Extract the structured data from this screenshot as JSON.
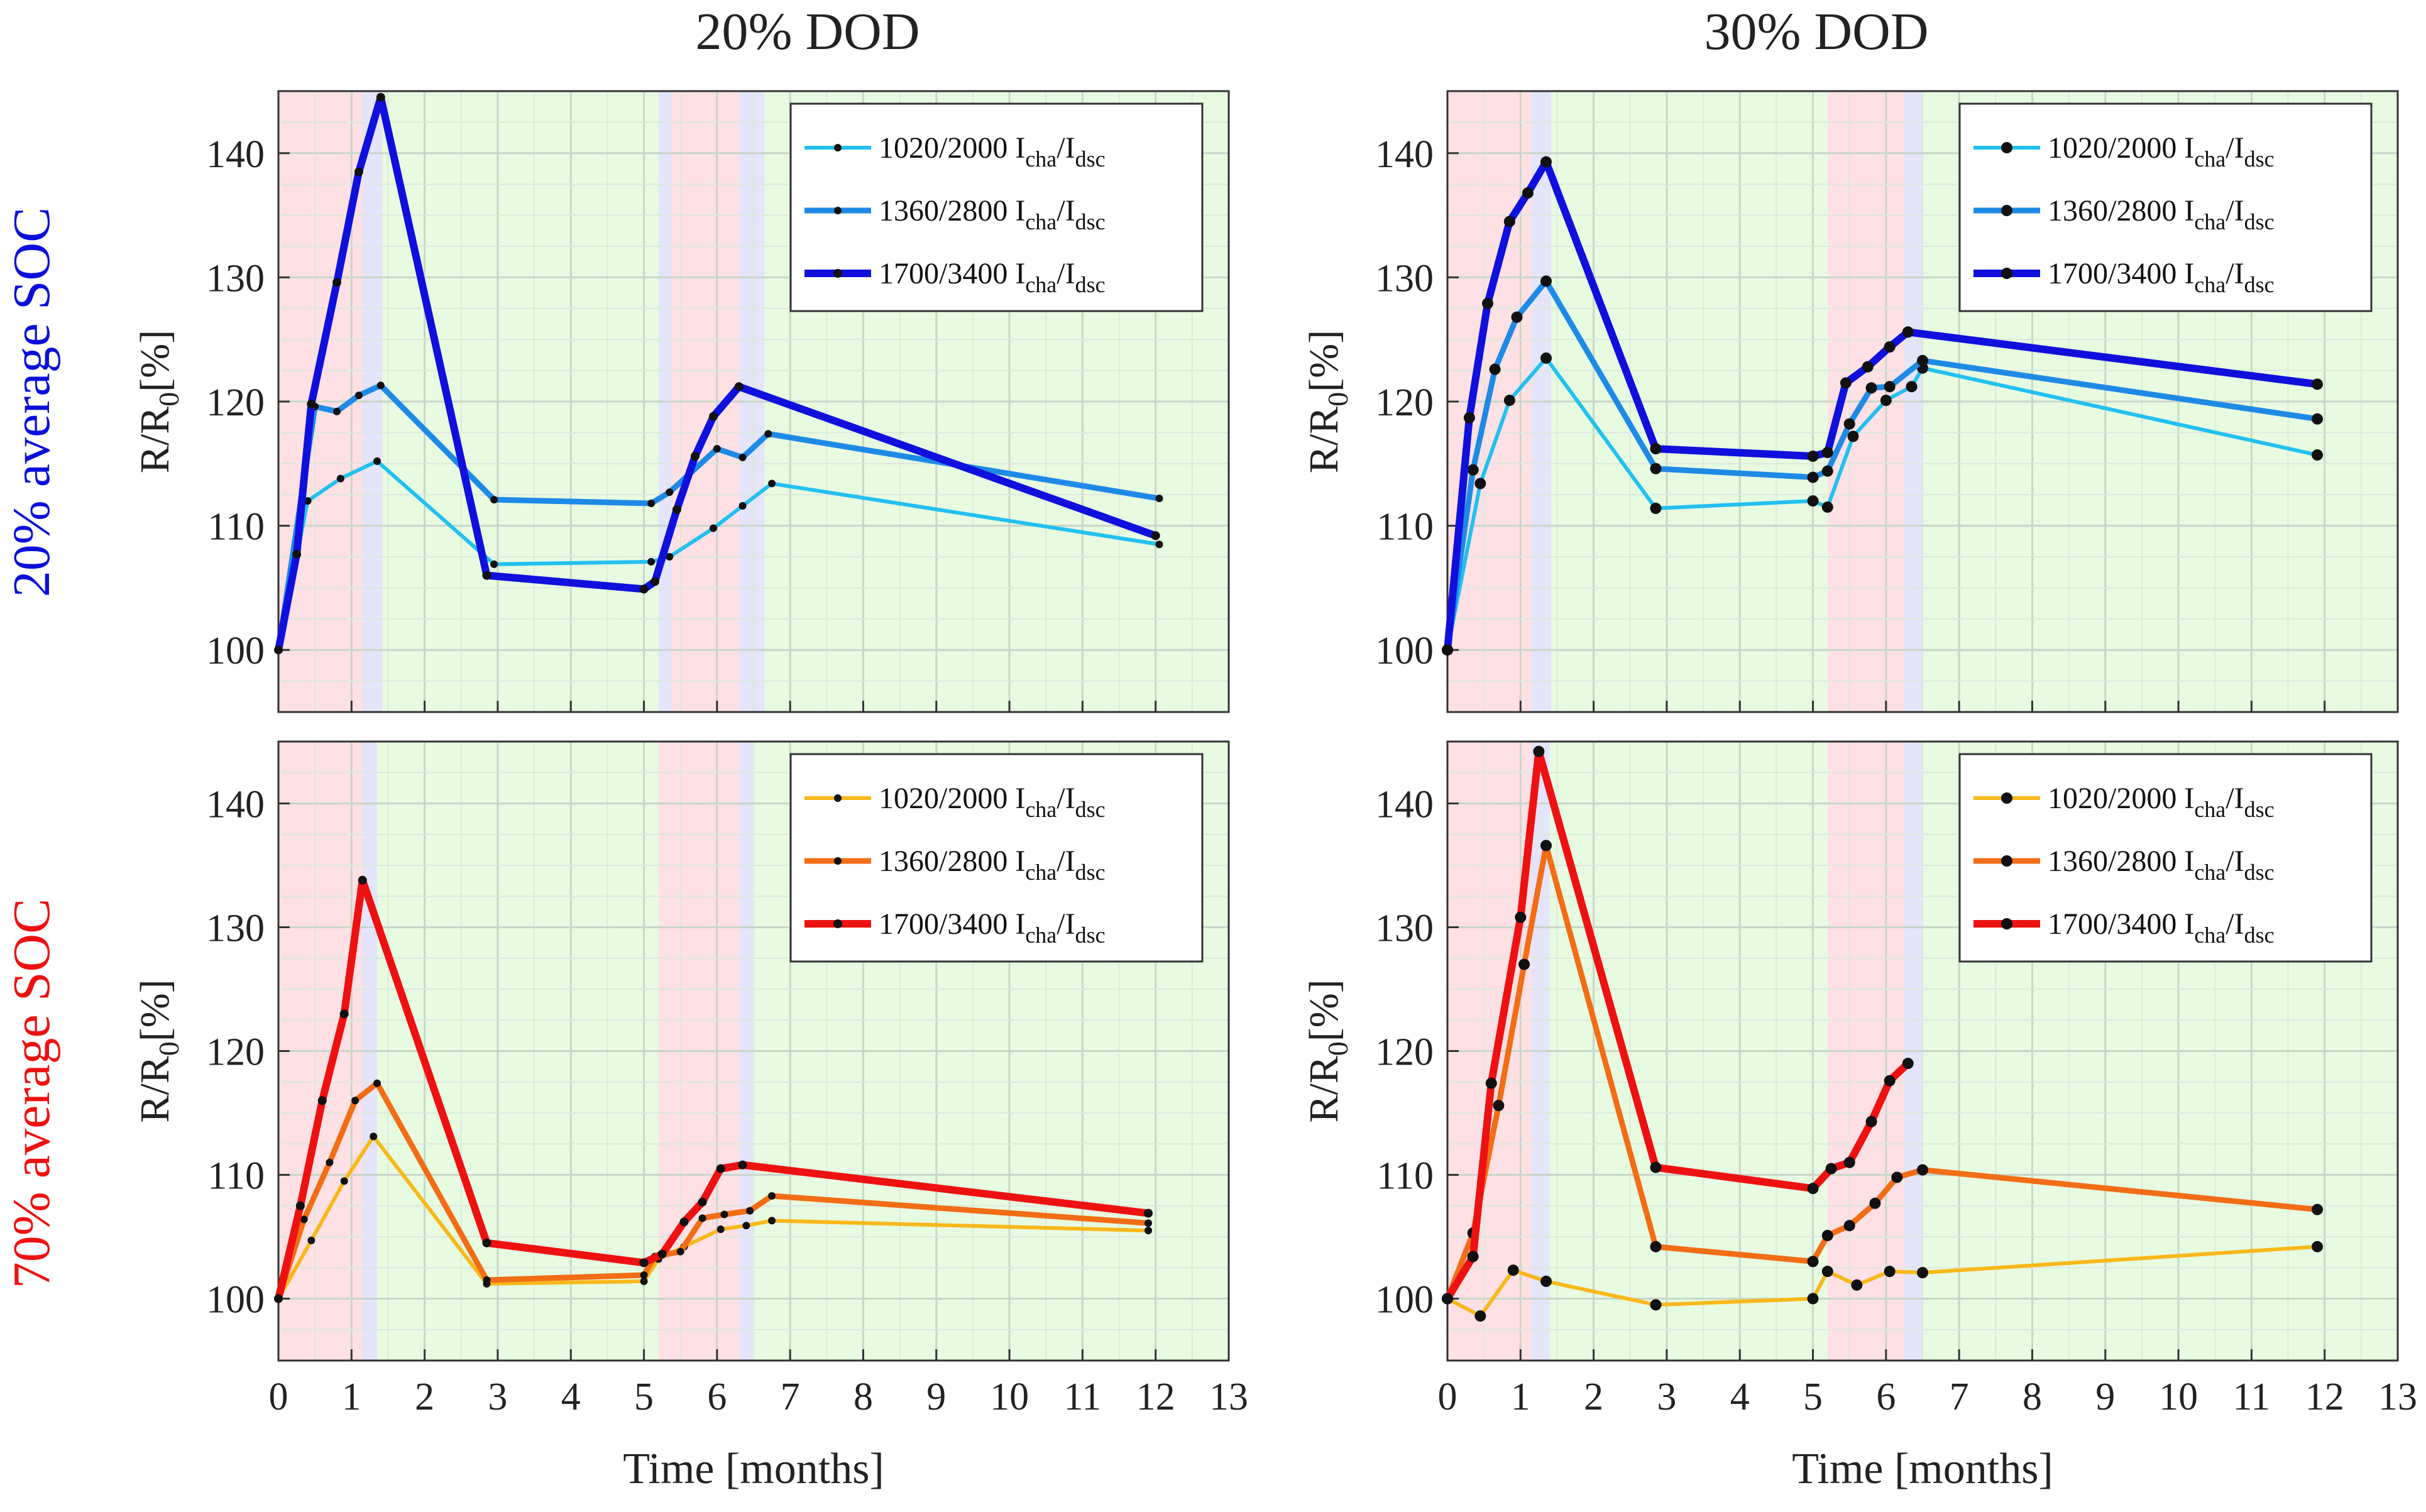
{
  "figure": {
    "col_titles": [
      "20% DOD",
      "30% DOD"
    ],
    "row_labels": [
      "20% average SOC",
      "70% average SOC"
    ],
    "row_label_colors": [
      "#0a10d8",
      "#ee1111"
    ],
    "xlabel": "Time [months]",
    "ylabel_main": "R/R",
    "ylabel_sub": "0",
    "ylabel_tail": "[%]",
    "xticks": [
      "0",
      "1",
      "2",
      "3",
      "4",
      "5",
      "6",
      "7",
      "8",
      "9",
      "10",
      "11",
      "12",
      "13"
    ],
    "yticks": [
      "100",
      "110",
      "120",
      "130",
      "140"
    ],
    "legend_suffix_i1": "I",
    "legend_suffix_s1": "cha",
    "legend_suffix_slash": "/I",
    "legend_suffix_s2": "dsc",
    "shading": {
      "red": "#ffe0e4",
      "blue": "#e4e4fb",
      "green": "#e6fbe0"
    }
  },
  "chart_data": [
    {
      "id": "tl",
      "type": "line",
      "title": "20% DOD",
      "row": "20% average SOC",
      "xlim": [
        0,
        13
      ],
      "ylim": [
        95,
        145
      ],
      "xlabel": "",
      "ylabel": "R/R0[%]",
      "grid": true,
      "legend": "top-right",
      "regions": [
        {
          "from": 0,
          "to": 1.15,
          "color": "red"
        },
        {
          "from": 1.15,
          "to": 1.42,
          "color": "blue"
        },
        {
          "from": 1.42,
          "to": 5.2,
          "color": "green"
        },
        {
          "from": 5.2,
          "to": 5.38,
          "color": "blue"
        },
        {
          "from": 5.38,
          "to": 6.3,
          "color": "red"
        },
        {
          "from": 6.3,
          "to": 6.65,
          "color": "blue"
        },
        {
          "from": 6.65,
          "to": 13,
          "color": "green"
        }
      ],
      "series": [
        {
          "name": "1020/2000",
          "color": "#22c0f0",
          "width": 6,
          "marker": 6,
          "x": [
            0,
            0.4,
            0.85,
            1.35,
            2.95,
            5.1,
            5.35,
            5.95,
            6.35,
            6.75,
            12.05
          ],
          "y": [
            100,
            112,
            113.8,
            115.2,
            106.9,
            107.1,
            107.5,
            109.8,
            111.6,
            113.4,
            108.5
          ]
        },
        {
          "name": "1360/2800",
          "color": "#1e8ae6",
          "width": 9,
          "marker": 6,
          "x": [
            0,
            0.5,
            0.8,
            1.1,
            1.4,
            2.95,
            5.1,
            5.35,
            6.0,
            6.35,
            6.7,
            12.05
          ],
          "y": [
            100,
            119.6,
            119.2,
            120.5,
            121.3,
            112.1,
            111.8,
            112.7,
            116.2,
            115.5,
            117.4,
            112.2
          ]
        },
        {
          "name": "1700/3400",
          "color": "#1010dd",
          "width": 12,
          "marker": 7,
          "x": [
            0,
            0.25,
            0.45,
            0.8,
            1.1,
            1.4,
            2.85,
            5.0,
            5.15,
            5.45,
            5.7,
            5.95,
            6.3,
            12.0
          ],
          "y": [
            100,
            107.7,
            119.8,
            129.6,
            138.5,
            144.5,
            106,
            104.9,
            105.5,
            111.3,
            115.6,
            118.8,
            121.2,
            109.2
          ]
        }
      ]
    },
    {
      "id": "tr",
      "type": "line",
      "title": "30% DOD",
      "row": "20% average SOC",
      "xlim": [
        0,
        13
      ],
      "ylim": [
        95,
        145
      ],
      "xlabel": "",
      "ylabel": "R/R0[%]",
      "grid": true,
      "legend": "top-right",
      "regions": [
        {
          "from": 0,
          "to": 1.15,
          "color": "red"
        },
        {
          "from": 1.15,
          "to": 1.42,
          "color": "blue"
        },
        {
          "from": 1.42,
          "to": 5.2,
          "color": "green"
        },
        {
          "from": 5.2,
          "to": 6.25,
          "color": "red"
        },
        {
          "from": 6.25,
          "to": 6.5,
          "color": "blue"
        },
        {
          "from": 6.5,
          "to": 13,
          "color": "green"
        }
      ],
      "series": [
        {
          "name": "1020/2000",
          "color": "#22c0f0",
          "width": 6,
          "marker": 9,
          "x": [
            0,
            0.45,
            0.85,
            1.35,
            2.85,
            5.0,
            5.2,
            5.55,
            6.0,
            6.35,
            6.5,
            11.9
          ],
          "y": [
            100,
            113.4,
            120.1,
            123.5,
            111.4,
            112.0,
            111.5,
            117.2,
            120.1,
            121.2,
            122.7,
            115.7
          ]
        },
        {
          "name": "1360/2800",
          "color": "#1e8ae6",
          "width": 9,
          "marker": 9,
          "x": [
            0,
            0.35,
            0.65,
            0.95,
            1.35,
            2.85,
            5.0,
            5.2,
            5.5,
            5.8,
            6.05,
            6.5,
            11.9
          ],
          "y": [
            100,
            114.5,
            122.6,
            126.8,
            129.7,
            114.6,
            113.9,
            114.4,
            118.2,
            121.1,
            121.2,
            123.3,
            118.6
          ]
        },
        {
          "name": "1700/3400",
          "color": "#1010dd",
          "width": 12,
          "marker": 9,
          "x": [
            0,
            0.3,
            0.55,
            0.85,
            1.1,
            1.35,
            2.85,
            5.0,
            5.2,
            5.45,
            5.75,
            6.05,
            6.3,
            11.9
          ],
          "y": [
            100,
            118.7,
            127.9,
            134.5,
            136.8,
            139.3,
            116.2,
            115.6,
            115.9,
            121.5,
            122.8,
            124.4,
            125.6,
            121.4
          ]
        }
      ]
    },
    {
      "id": "bl",
      "type": "line",
      "title": "",
      "row": "70% average SOC",
      "xlim": [
        0,
        13
      ],
      "ylim": [
        95,
        145
      ],
      "xlabel": "Time [months]",
      "ylabel": "R/R0[%]",
      "grid": true,
      "legend": "top-right",
      "regions": [
        {
          "from": 0,
          "to": 1.15,
          "color": "red"
        },
        {
          "from": 1.15,
          "to": 1.35,
          "color": "blue"
        },
        {
          "from": 1.35,
          "to": 5.2,
          "color": "green"
        },
        {
          "from": 5.2,
          "to": 6.3,
          "color": "red"
        },
        {
          "from": 6.3,
          "to": 6.5,
          "color": "blue"
        },
        {
          "from": 6.5,
          "to": 13,
          "color": "green"
        }
      ],
      "series": [
        {
          "name": "1020/2000",
          "color": "#f8b81a",
          "width": 6,
          "marker": 6,
          "x": [
            0,
            0.45,
            0.9,
            1.3,
            2.85,
            5.0,
            5.2,
            5.55,
            6.05,
            6.4,
            6.75,
            11.9
          ],
          "y": [
            100,
            104.7,
            109.5,
            113.1,
            101.2,
            101.4,
            103.2,
            104.2,
            105.6,
            105.9,
            106.3,
            105.5
          ]
        },
        {
          "name": "1360/2800",
          "color": "#f26d15",
          "width": 9,
          "marker": 6,
          "x": [
            0,
            0.35,
            0.7,
            1.05,
            1.35,
            2.85,
            5.0,
            5.15,
            5.5,
            5.8,
            6.1,
            6.45,
            6.75,
            11.9
          ],
          "y": [
            100,
            106.4,
            111.0,
            116.0,
            117.4,
            101.5,
            101.9,
            103.4,
            103.8,
            106.5,
            106.8,
            107.1,
            108.3,
            106.1
          ]
        },
        {
          "name": "1700/3400",
          "color": "#ee1111",
          "width": 12,
          "marker": 7,
          "x": [
            0,
            0.3,
            0.6,
            0.9,
            1.15,
            2.85,
            5.0,
            5.25,
            5.55,
            5.8,
            6.05,
            6.35,
            11.9
          ],
          "y": [
            100,
            107.5,
            116.0,
            123.0,
            133.8,
            104.5,
            102.9,
            103.6,
            106.2,
            107.8,
            110.5,
            110.8,
            106.9
          ]
        }
      ]
    },
    {
      "id": "br",
      "type": "line",
      "title": "",
      "row": "70% average SOC",
      "xlim": [
        0,
        13
      ],
      "ylim": [
        95,
        145
      ],
      "xlabel": "Time [months]",
      "ylabel": "R/R0[%]",
      "grid": true,
      "legend": "top-right",
      "regions": [
        {
          "from": 0,
          "to": 1.15,
          "color": "red"
        },
        {
          "from": 1.15,
          "to": 1.4,
          "color": "blue"
        },
        {
          "from": 1.4,
          "to": 5.2,
          "color": "green"
        },
        {
          "from": 5.2,
          "to": 6.25,
          "color": "red"
        },
        {
          "from": 6.25,
          "to": 6.5,
          "color": "blue"
        },
        {
          "from": 6.5,
          "to": 13,
          "color": "green"
        }
      ],
      "series": [
        {
          "name": "1020/2000",
          "color": "#f8b81a",
          "width": 6,
          "marker": 9,
          "x": [
            0,
            0.45,
            0.9,
            1.35,
            2.85,
            5.0,
            5.2,
            5.6,
            6.05,
            6.5,
            11.9
          ],
          "y": [
            100,
            98.6,
            102.3,
            101.4,
            99.5,
            100.0,
            102.2,
            101.1,
            102.2,
            102.1,
            104.2
          ]
        },
        {
          "name": "1360/2800",
          "color": "#f26d15",
          "width": 9,
          "marker": 9,
          "x": [
            0,
            0.35,
            0.7,
            1.05,
            1.35,
            2.85,
            5.0,
            5.2,
            5.5,
            5.85,
            6.15,
            6.5,
            11.9
          ],
          "y": [
            100,
            105.3,
            115.6,
            127.0,
            136.6,
            104.2,
            103.0,
            105.1,
            105.9,
            107.7,
            109.8,
            110.4,
            107.2
          ]
        },
        {
          "name": "1700/3400",
          "color": "#ee1111",
          "width": 12,
          "marker": 9,
          "x": [
            0,
            0.35,
            0.6,
            1.0,
            1.25,
            2.85,
            5.0,
            5.25,
            5.5,
            5.8,
            6.05,
            6.3
          ],
          "y": [
            100,
            103.4,
            117.4,
            130.8,
            144.2,
            110.6,
            108.9,
            110.5,
            111.0,
            114.3,
            117.6,
            119.0
          ]
        }
      ]
    }
  ]
}
